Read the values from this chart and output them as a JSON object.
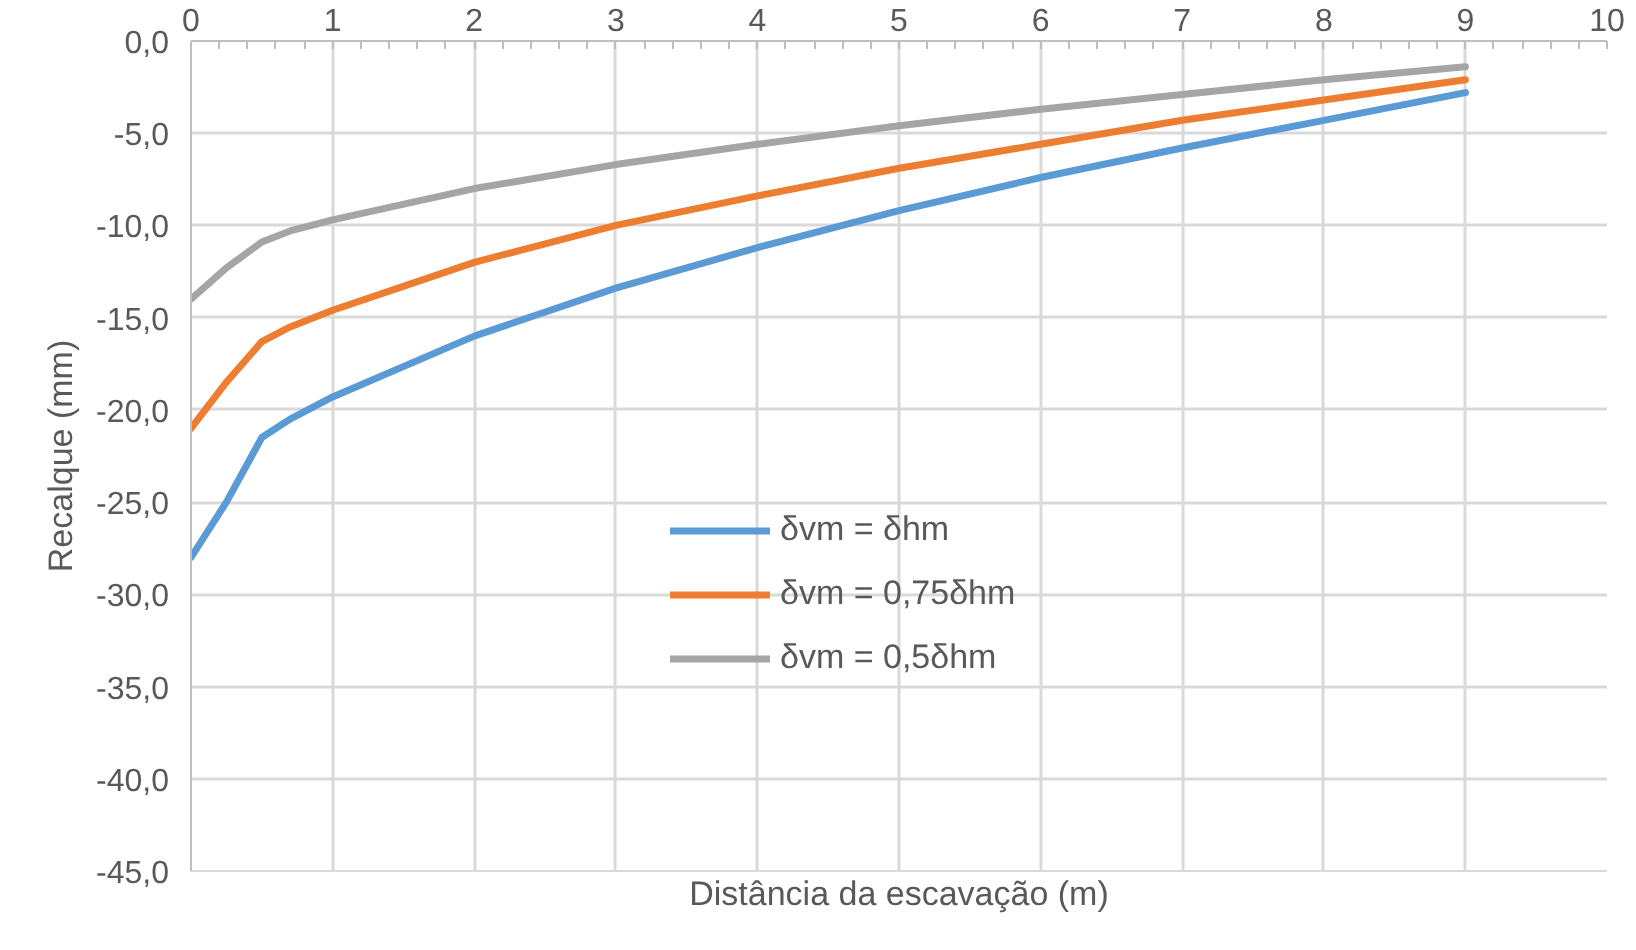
{
  "chart_data": {
    "type": "line",
    "xlabel": "Distância da escavação (m)",
    "ylabel": "Recalque (mm)",
    "xlim": [
      0,
      10
    ],
    "xticks": [
      0,
      1,
      2,
      3,
      4,
      5,
      6,
      7,
      8,
      9,
      10
    ],
    "ylim": [
      -45,
      0
    ],
    "yticks": [
      {
        "value": 0,
        "label": "0,0"
      },
      {
        "value": -5,
        "label": "-5,0"
      },
      {
        "value": -10,
        "label": "-10,0"
      },
      {
        "value": -15,
        "label": "-15,0"
      },
      {
        "value": -20,
        "label": "-20,0"
      },
      {
        "value": -25,
        "label": "-25,0"
      },
      {
        "value": -30,
        "label": "-30,0"
      },
      {
        "value": -35,
        "label": "-35,0"
      },
      {
        "value": -40,
        "label": "-40,0"
      },
      {
        "value": -45,
        "label": "-45,0"
      }
    ],
    "x": [
      0,
      0.25,
      0.5,
      0.7,
      1,
      2,
      3,
      4,
      5,
      6,
      7,
      8,
      9
    ],
    "series": [
      {
        "name": "δvm = δhm",
        "color": "#5b9bd5",
        "values": [
          -28,
          -25,
          -21.5,
          -20.5,
          -19.3,
          -16,
          -13.4,
          -11.2,
          -9.2,
          -7.4,
          -5.8,
          -4.3,
          -2.8
        ]
      },
      {
        "name": "δvm = 0,75δhm",
        "color": "#ed7d31",
        "values": [
          -21,
          -18.5,
          -16.3,
          -15.5,
          -14.6,
          -12,
          -10,
          -8.4,
          -6.9,
          -5.6,
          -4.3,
          -3.2,
          -2.1
        ]
      },
      {
        "name": "δvm = 0,5δhm",
        "color": "#a5a5a5",
        "values": [
          -14,
          -12.3,
          -10.9,
          -10.3,
          -9.7,
          -8,
          -6.7,
          -5.6,
          -4.6,
          -3.7,
          -2.9,
          -2.1,
          -1.4
        ]
      }
    ],
    "grid": true,
    "legend": "center",
    "marker": "none",
    "line_style": "solid"
  }
}
